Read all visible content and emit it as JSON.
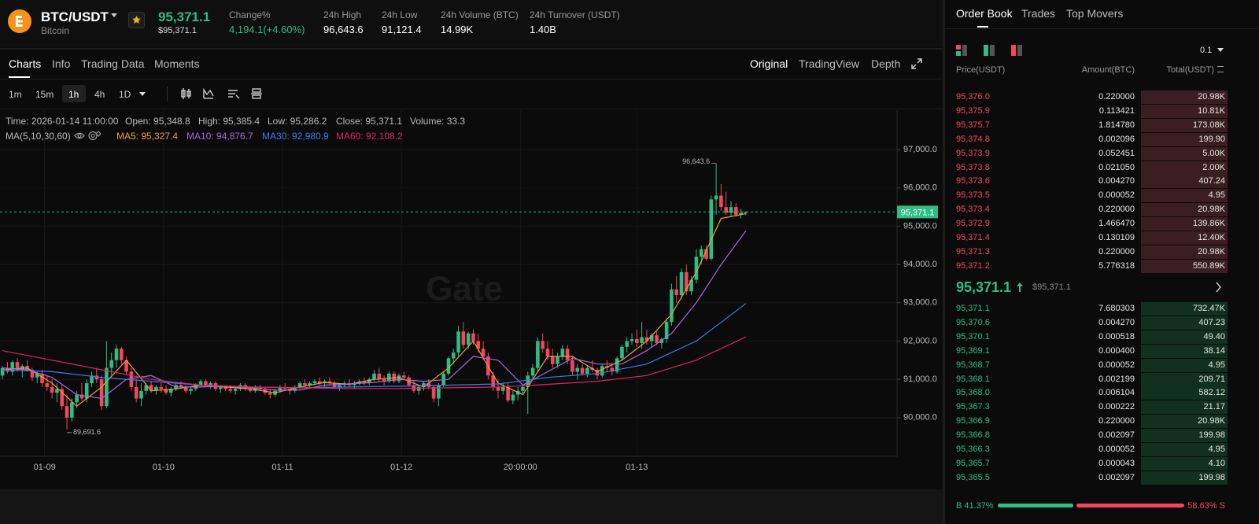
{
  "header": {
    "symbol": "BTC/USDT",
    "name": "Bitcoin",
    "price": "95,371.1",
    "price_usd": "$95,371.1",
    "stats": [
      {
        "label": "Change%",
        "value": "4,194.1(+4.60%)"
      },
      {
        "label": "24h High",
        "value": "96,643.6"
      },
      {
        "label": "24h Low",
        "value": "91,121.4"
      },
      {
        "label": "24h Volume (BTC)",
        "value": "14.99K"
      },
      {
        "label": "24h Turnover (USDT)",
        "value": "1.40B"
      }
    ]
  },
  "tabs": [
    "Charts",
    "Info",
    "Trading Data",
    "Moments"
  ],
  "view_tabs": [
    "Original",
    "TradingView",
    "Depth"
  ],
  "intervals": [
    "1m",
    "15m",
    "1h",
    "4h",
    "1D"
  ],
  "chart_info": [
    "Time: 2026-01-14 11:00:00",
    "Open: 95,348.8",
    "High: 95,385.4",
    "Low: 95,286.2",
    "Close: 95,371.1",
    "Volume: 33.3"
  ],
  "chart_data": {
    "type": "candlestick",
    "watermark": "Gate",
    "ma_label": "MA(5,10,30,60)",
    "up_color": "#2ebd85",
    "down_color": "#f6465d",
    "candles": [
      [
        91100,
        91350,
        91000,
        91300
      ],
      [
        91300,
        91450,
        91150,
        91200
      ],
      [
        91200,
        91500,
        91100,
        91450
      ],
      [
        91450,
        91550,
        91200,
        91250
      ],
      [
        91250,
        91400,
        91050,
        91350
      ],
      [
        91350,
        91500,
        91200,
        91250
      ],
      [
        91250,
        91300,
        90950,
        91050
      ],
      [
        91050,
        91200,
        90900,
        91150
      ],
      [
        91150,
        91250,
        90800,
        90900
      ],
      [
        90900,
        91100,
        90700,
        90800
      ],
      [
        90800,
        91000,
        90500,
        90650
      ],
      [
        90650,
        90900,
        90400,
        90750
      ],
      [
        90750,
        90850,
        90200,
        90300
      ],
      [
        90300,
        90600,
        89691.6,
        90000
      ],
      [
        90000,
        90500,
        89900,
        90400
      ],
      [
        90400,
        90700,
        90250,
        90600
      ],
      [
        90600,
        90900,
        90450,
        90500
      ],
      [
        90500,
        91000,
        90400,
        90900
      ],
      [
        90900,
        91200,
        90800,
        91100
      ],
      [
        91100,
        91300,
        90900,
        91000
      ],
      [
        91000,
        91100,
        90200,
        90300
      ],
      [
        90300,
        92000,
        90250,
        91300
      ],
      [
        91300,
        91700,
        91100,
        91500
      ],
      [
        91500,
        91900,
        91300,
        91800
      ],
      [
        91800,
        91850,
        91400,
        91500
      ],
      [
        91500,
        91600,
        91100,
        91200
      ],
      [
        91200,
        91300,
        90700,
        90800
      ],
      [
        90800,
        91000,
        90400,
        90500
      ],
      [
        90500,
        90900,
        90300,
        90700
      ],
      [
        90700,
        90900,
        90600,
        90850
      ],
      [
        90850,
        90950,
        90650,
        90700
      ],
      [
        90700,
        90850,
        90600,
        90800
      ],
      [
        90800,
        90900,
        90650,
        90750
      ],
      [
        90750,
        90850,
        90600,
        90650
      ],
      [
        90650,
        90800,
        90550,
        90750
      ],
      [
        90750,
        90900,
        90700,
        90850
      ],
      [
        90850,
        90950,
        90750,
        90800
      ],
      [
        90800,
        90850,
        90650,
        90700
      ],
      [
        90700,
        90800,
        90600,
        90750
      ],
      [
        90750,
        90900,
        90700,
        90850
      ],
      [
        90850,
        91000,
        90800,
        90950
      ],
      [
        90950,
        91000,
        90800,
        90850
      ],
      [
        90850,
        90950,
        90750,
        90900
      ],
      [
        90900,
        90950,
        90700,
        90750
      ],
      [
        90750,
        90850,
        90650,
        90800
      ],
      [
        90800,
        90850,
        90700,
        90750
      ],
      [
        90750,
        90850,
        90650,
        90700
      ],
      [
        90700,
        90800,
        90600,
        90750
      ],
      [
        90750,
        90900,
        90700,
        90850
      ],
      [
        90850,
        90900,
        90700,
        90750
      ],
      [
        90750,
        90800,
        90650,
        90700
      ],
      [
        90700,
        90850,
        90650,
        90800
      ],
      [
        90800,
        90850,
        90700,
        90750
      ],
      [
        90750,
        90800,
        90600,
        90650
      ],
      [
        90650,
        90750,
        90500,
        90600
      ],
      [
        90600,
        90750,
        90550,
        90700
      ],
      [
        90700,
        90850,
        90650,
        90800
      ],
      [
        90800,
        90900,
        90700,
        90750
      ],
      [
        90750,
        90800,
        90600,
        90700
      ],
      [
        90700,
        90850,
        90650,
        90800
      ],
      [
        90800,
        90950,
        90750,
        90900
      ],
      [
        90900,
        91000,
        90800,
        90850
      ],
      [
        90850,
        90950,
        90750,
        90900
      ],
      [
        90900,
        91000,
        90850,
        90950
      ],
      [
        90950,
        91050,
        90850,
        90900
      ],
      [
        90900,
        91000,
        90800,
        90950
      ],
      [
        90950,
        91050,
        90850,
        90900
      ],
      [
        90900,
        90950,
        90750,
        90800
      ],
      [
        90800,
        90900,
        90700,
        90850
      ],
      [
        90850,
        90950,
        90800,
        90900
      ],
      [
        90900,
        91000,
        90800,
        90850
      ],
      [
        90850,
        90950,
        90750,
        90900
      ],
      [
        90900,
        91000,
        90850,
        90950
      ],
      [
        90950,
        91050,
        90850,
        90900
      ],
      [
        90900,
        91050,
        90850,
        91000
      ],
      [
        91000,
        91250,
        90950,
        91150
      ],
      [
        91150,
        91300,
        90950,
        91000
      ],
      [
        91000,
        91100,
        90850,
        90950
      ],
      [
        90950,
        91200,
        90900,
        91150
      ],
      [
        91150,
        91200,
        90900,
        90950
      ],
      [
        90950,
        91150,
        90900,
        91100
      ],
      [
        91100,
        91200,
        91000,
        91050
      ],
      [
        91050,
        91100,
        90800,
        90850
      ],
      [
        90850,
        90950,
        90650,
        90700
      ],
      [
        90700,
        90850,
        90600,
        90800
      ],
      [
        90800,
        90950,
        90700,
        90900
      ],
      [
        90900,
        91000,
        90750,
        90800
      ],
      [
        90800,
        90850,
        90400,
        90500
      ],
      [
        90500,
        90900,
        90300,
        90850
      ],
      [
        90850,
        91200,
        90800,
        91150
      ],
      [
        91150,
        91600,
        91100,
        91550
      ],
      [
        91550,
        91800,
        91400,
        91700
      ],
      [
        91700,
        92400,
        91600,
        92250
      ],
      [
        92250,
        92500,
        91800,
        91900
      ],
      [
        91900,
        92250,
        91800,
        92200
      ],
      [
        92200,
        92300,
        91900,
        92000
      ],
      [
        92000,
        92200,
        91700,
        91800
      ],
      [
        91800,
        92000,
        91500,
        91600
      ],
      [
        91600,
        91700,
        91000,
        91100
      ],
      [
        91100,
        91200,
        90700,
        90800
      ],
      [
        90800,
        91000,
        90500,
        90700
      ],
      [
        90700,
        90900,
        90600,
        90800
      ],
      [
        90800,
        90900,
        90400,
        90450
      ],
      [
        90450,
        90700,
        90350,
        90600
      ],
      [
        90600,
        90800,
        90450,
        90700
      ],
      [
        90700,
        90850,
        90600,
        90800
      ],
      [
        90800,
        91200,
        90100,
        91100
      ],
      [
        91100,
        91400,
        91000,
        91300
      ],
      [
        91300,
        92100,
        91200,
        92000
      ],
      [
        92000,
        92200,
        91700,
        91800
      ],
      [
        91800,
        92000,
        91500,
        91600
      ],
      [
        91600,
        91800,
        91300,
        91400
      ],
      [
        91400,
        91700,
        91300,
        91600
      ],
      [
        91600,
        91900,
        91500,
        91800
      ],
      [
        91800,
        91900,
        91400,
        91500
      ],
      [
        91500,
        91600,
        91100,
        91200
      ],
      [
        91200,
        91400,
        91000,
        91300
      ],
      [
        91300,
        91400,
        91100,
        91150
      ],
      [
        91150,
        91350,
        91050,
        91300
      ],
      [
        91300,
        91500,
        91200,
        91250
      ],
      [
        91250,
        91300,
        91000,
        91100
      ],
      [
        91100,
        91400,
        91050,
        91350
      ],
      [
        91350,
        91500,
        91200,
        91300
      ],
      [
        91300,
        91400,
        91100,
        91200
      ],
      [
        91200,
        91600,
        91150,
        91550
      ],
      [
        91550,
        91900,
        91500,
        91850
      ],
      [
        91850,
        92100,
        91700,
        92000
      ],
      [
        92000,
        92200,
        91900,
        92050
      ],
      [
        92050,
        92300,
        91850,
        91950
      ],
      [
        91950,
        92500,
        91800,
        92100
      ],
      [
        92100,
        92300,
        91900,
        92000
      ],
      [
        92000,
        92200,
        91850,
        92150
      ],
      [
        92150,
        92250,
        91900,
        91950
      ],
      [
        91950,
        92100,
        91800,
        92050
      ],
      [
        92050,
        92600,
        91950,
        92500
      ],
      [
        92500,
        93500,
        92400,
        93350
      ],
      [
        93350,
        93700,
        93000,
        93200
      ],
      [
        93200,
        93900,
        93100,
        93800
      ],
      [
        93800,
        94000,
        93200,
        93300
      ],
      [
        93300,
        93700,
        93200,
        93600
      ],
      [
        93600,
        94400,
        93500,
        94200
      ],
      [
        94200,
        94500,
        94000,
        94400
      ],
      [
        94400,
        94500,
        94100,
        94150
      ],
      [
        94150,
        95800,
        94100,
        95700
      ],
      [
        95700,
        96643.6,
        95300,
        95800
      ],
      [
        95800,
        96100,
        95400,
        95500
      ],
      [
        95500,
        95900,
        95300,
        95350
      ],
      [
        95350,
        95650,
        95250,
        95500
      ],
      [
        95500,
        95600,
        95250,
        95300
      ],
      [
        95300,
        95450,
        95200,
        95348.8
      ],
      [
        95348.8,
        95385.4,
        95286.2,
        95371.1
      ]
    ],
    "xlim": [
      -0.5,
      180.5
    ],
    "xticks": [
      {
        "value": 8.5,
        "label": "01-09"
      },
      {
        "value": 32.5,
        "label": "01-10"
      },
      {
        "value": 56.5,
        "label": "01-11"
      },
      {
        "value": 80.5,
        "label": "01-12"
      },
      {
        "value": 104.5,
        "label": "20:00:00"
      },
      {
        "value": 128,
        "label": "01-13"
      }
    ],
    "ylim": [
      88990,
      98030
    ],
    "yticks": [
      {
        "value": 90000,
        "label": "90,000.0"
      },
      {
        "value": 91000,
        "label": "91,000.0"
      },
      {
        "value": 92000,
        "label": "92,000.0"
      },
      {
        "value": 93000,
        "label": "93,000.0"
      },
      {
        "value": 94000,
        "label": "94,000.0"
      },
      {
        "value": 95000,
        "label": "95,000.0"
      },
      {
        "value": 96000,
        "label": "96,000.0"
      },
      {
        "value": 97000,
        "label": "97,000.0"
      }
    ],
    "grid": true,
    "high_label": "96,643.6",
    "low_label": "89,691.6",
    "last_price_label": "95,371.1",
    "series": [
      {
        "name": "MA5: 95,327.4",
        "color": "#f0a035",
        "x": [
          0,
          5,
          10,
          15,
          20,
          25,
          30,
          35,
          40,
          45,
          50,
          55,
          60,
          65,
          70,
          75,
          80,
          85,
          90,
          95,
          100,
          105,
          110,
          115,
          120,
          125,
          130,
          135,
          140,
          145,
          150
        ],
        "values": [
          91250,
          91300,
          90900,
          90300,
          90800,
          91500,
          90700,
          90750,
          90850,
          90800,
          90750,
          90650,
          90800,
          90920,
          90870,
          91000,
          91050,
          90800,
          91300,
          92000,
          90900,
          90600,
          91600,
          91600,
          91200,
          91500,
          92000,
          92700,
          93800,
          95200,
          95327.4
        ]
      },
      {
        "name": "MA10: 94,876.7",
        "color": "#a868e0",
        "x": [
          0,
          5,
          10,
          15,
          20,
          25,
          30,
          35,
          40,
          45,
          50,
          55,
          60,
          65,
          70,
          75,
          80,
          85,
          90,
          95,
          100,
          105,
          110,
          115,
          120,
          125,
          130,
          135,
          140,
          145,
          150
        ],
        "values": [
          91300,
          91250,
          91050,
          90600,
          90500,
          91000,
          91100,
          90800,
          90800,
          90820,
          90780,
          90720,
          90720,
          90850,
          90880,
          90920,
          91000,
          90950,
          91000,
          91600,
          91500,
          90850,
          91200,
          91550,
          91400,
          91400,
          91750,
          92200,
          93000,
          94000,
          94876.7
        ]
      },
      {
        "name": "MA30: 92,980.9",
        "color": "#3a7bf0",
        "x": [
          0,
          10,
          20,
          30,
          40,
          50,
          60,
          70,
          80,
          90,
          100,
          110,
          120,
          130,
          140,
          150
        ],
        "values": [
          91250,
          91200,
          91050,
          90950,
          90850,
          90800,
          90780,
          90800,
          90820,
          90850,
          90880,
          91050,
          91150,
          91400,
          92000,
          92980.9
        ]
      },
      {
        "name": "MA60: 92,108.2",
        "color": "#e0245e",
        "x": [
          0,
          10,
          20,
          30,
          40,
          50,
          60,
          70,
          80,
          90,
          100,
          110,
          120,
          130,
          140,
          150
        ],
        "values": [
          91750,
          91500,
          91250,
          91000,
          90850,
          90800,
          90780,
          90760,
          90760,
          90780,
          90800,
          90870,
          90950,
          91100,
          91500,
          92108.2
        ]
      }
    ]
  },
  "order_book": {
    "tabs": [
      "Order Book",
      "Trades",
      "Top Movers"
    ],
    "precision": "0.1",
    "columns": [
      "Price(USDT)",
      "Amount(BTC)",
      "Total(USDT)"
    ],
    "asks": [
      [
        "95,376.0",
        "0.220000",
        "20.98K"
      ],
      [
        "95,375.9",
        "0.113421",
        "10.81K"
      ],
      [
        "95,375.7",
        "1.814780",
        "173.08K"
      ],
      [
        "95,374.8",
        "0.002096",
        "199.90"
      ],
      [
        "95,373.9",
        "0.052451",
        "5.00K"
      ],
      [
        "95,373.8",
        "0.021050",
        "2.00K"
      ],
      [
        "95,373.6",
        "0.004270",
        "407.24"
      ],
      [
        "95,373.5",
        "0.000052",
        "4.95"
      ],
      [
        "95,373.4",
        "0.220000",
        "20.98K"
      ],
      [
        "95,372.9",
        "1.466470",
        "139.86K"
      ],
      [
        "95,371.4",
        "0.130109",
        "12.40K"
      ],
      [
        "95,371.3",
        "0.220000",
        "20.98K"
      ],
      [
        "95,371.2",
        "5.776318",
        "550.89K"
      ]
    ],
    "mid_price": "95,371.1",
    "mid_price_usd": "$95,371.1",
    "bids": [
      [
        "95,371.1",
        "7.680303",
        "732.47K"
      ],
      [
        "95,370.6",
        "0.004270",
        "407.23"
      ],
      [
        "95,370.1",
        "0.000518",
        "49.40"
      ],
      [
        "95,369.1",
        "0.000400",
        "38.14"
      ],
      [
        "95,368.7",
        "0.000052",
        "4.95"
      ],
      [
        "95,368.1",
        "0.002199",
        "209.71"
      ],
      [
        "95,368.0",
        "0.006104",
        "582.12"
      ],
      [
        "95,367.3",
        "0.000222",
        "21.17"
      ],
      [
        "95,366.9",
        "0.220000",
        "20.98K"
      ],
      [
        "95,366.8",
        "0.002097",
        "199.98"
      ],
      [
        "95,366.3",
        "0.000052",
        "4.95"
      ],
      [
        "95,365.7",
        "0.000043",
        "4.10"
      ],
      [
        "95,365.5",
        "0.002097",
        "199.98"
      ]
    ],
    "buy_ratio": 41.37,
    "buy_label": "B 41.37%",
    "sell_ratio": 58.63,
    "sell_label": "58.63% S"
  }
}
